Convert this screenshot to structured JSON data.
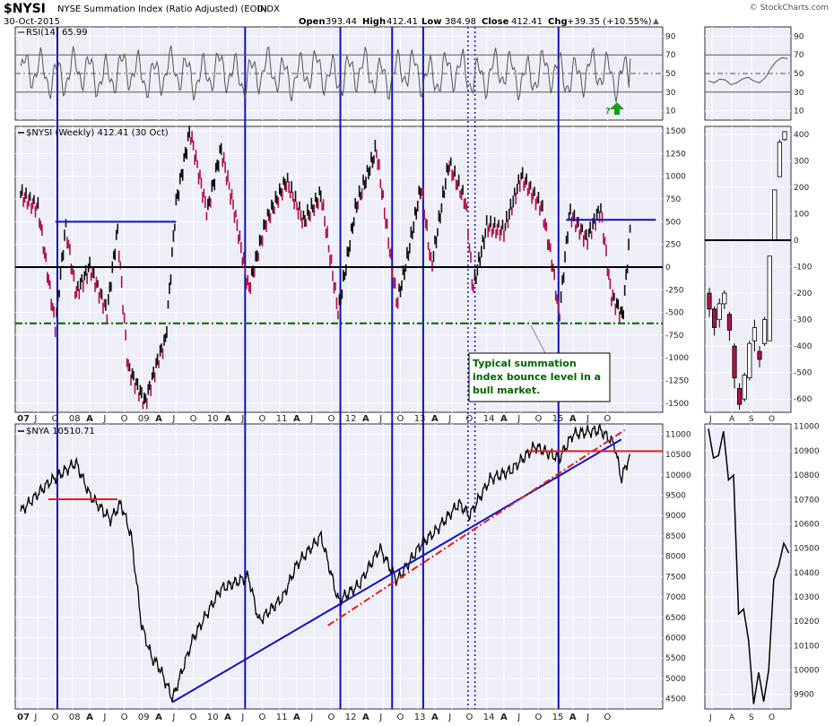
{
  "header": {
    "symbol": "$NYSI",
    "name": "NYSE Summation Index (Ratio Adjusted) (EOD)",
    "exchange": "INDX",
    "date": "30-Oct-2015",
    "brand": "© StockCharts.com",
    "quote": {
      "open_label": "Open",
      "open": "393.44",
      "high_label": "High",
      "high": "412.41",
      "low_label": "Low",
      "low": "384.98",
      "close_label": "Close",
      "close": "412.41",
      "chg_label": "Chg",
      "chg": "+39.35 (+10.55%)",
      "chg_arrow": "▲"
    }
  },
  "colors": {
    "panel_bg": "#eeeef8",
    "grid": "#ffffff",
    "blue_line": "#1010c8",
    "red_line": "#e02020",
    "green_dash": "#006400",
    "up_bar": "#111111",
    "down_bar": "#b0124a",
    "rsi_line": "#555555",
    "green_arrow": "#19a019"
  },
  "chart_data": [
    {
      "type": "line",
      "panel": "rsi",
      "legend": "RSI(14) 65.99",
      "y_ticks": [
        "90",
        "70",
        "50",
        "30",
        "10"
      ],
      "ylim": [
        0,
        100
      ],
      "reference_levels": [
        70,
        50,
        30
      ],
      "annotation": "?"
    },
    {
      "type": "bar",
      "panel": "nysi",
      "legend": "$NYSI (Weekly) 412.41 (30 Oct)",
      "y_ticks": [
        "1500",
        "1250",
        "1000",
        "750",
        "500",
        "250",
        "0",
        "-250",
        "-500",
        "-750",
        "-1000",
        "-1250",
        "-1500"
      ],
      "ylim": [
        -1600,
        1550
      ],
      "x_ticks": [
        "07",
        "J",
        "O",
        "08",
        "A",
        "J",
        "O",
        "09",
        "A",
        "J",
        "O",
        "10",
        "A",
        "J",
        "O",
        "11",
        "A",
        "J",
        "O",
        "12",
        "A",
        "J",
        "O",
        "13",
        "A",
        "J",
        "O",
        "14",
        "A",
        "J",
        "O",
        "15",
        "A",
        "J",
        "O"
      ],
      "series_approx": [
        {
          "t": 2007.0,
          "v": 800
        },
        {
          "t": 2007.25,
          "v": 650
        },
        {
          "t": 2007.5,
          "v": -650
        },
        {
          "t": 2007.65,
          "v": 450
        },
        {
          "t": 2007.8,
          "v": -300
        },
        {
          "t": 2008.0,
          "v": 0
        },
        {
          "t": 2008.25,
          "v": -500
        },
        {
          "t": 2008.4,
          "v": 420
        },
        {
          "t": 2008.55,
          "v": -1100
        },
        {
          "t": 2008.8,
          "v": -1500
        },
        {
          "t": 2009.0,
          "v": -1000
        },
        {
          "t": 2009.1,
          "v": -800
        },
        {
          "t": 2009.25,
          "v": 700
        },
        {
          "t": 2009.45,
          "v": 1500
        },
        {
          "t": 2009.7,
          "v": 600
        },
        {
          "t": 2009.9,
          "v": 1300
        },
        {
          "t": 2010.1,
          "v": 600
        },
        {
          "t": 2010.3,
          "v": -250
        },
        {
          "t": 2010.55,
          "v": 500
        },
        {
          "t": 2010.85,
          "v": 950
        },
        {
          "t": 2011.1,
          "v": 500
        },
        {
          "t": 2011.35,
          "v": 800
        },
        {
          "t": 2011.6,
          "v": -500
        },
        {
          "t": 2011.85,
          "v": 650
        },
        {
          "t": 2012.15,
          "v": 1300
        },
        {
          "t": 2012.45,
          "v": -400
        },
        {
          "t": 2012.6,
          "v": 100
        },
        {
          "t": 2012.8,
          "v": 900
        },
        {
          "t": 2012.95,
          "v": 0
        },
        {
          "t": 2013.2,
          "v": 1150
        },
        {
          "t": 2013.45,
          "v": 700
        },
        {
          "t": 2013.55,
          "v": -250
        },
        {
          "t": 2013.75,
          "v": 450
        },
        {
          "t": 2014.0,
          "v": 400
        },
        {
          "t": 2014.25,
          "v": 1000
        },
        {
          "t": 2014.55,
          "v": 650
        },
        {
          "t": 2014.7,
          "v": 50
        },
        {
          "t": 2014.8,
          "v": -550
        },
        {
          "t": 2014.95,
          "v": 600
        },
        {
          "t": 2015.2,
          "v": 300
        },
        {
          "t": 2015.4,
          "v": 650
        },
        {
          "t": 2015.55,
          "v": -300
        },
        {
          "t": 2015.72,
          "v": -550
        },
        {
          "t": 2015.83,
          "v": 412
        }
      ],
      "horizontal_levels": [
        {
          "value": 500,
          "from": 2007.5,
          "to": 2009.25,
          "style": "blue"
        },
        {
          "value": 520,
          "from": 2014.9,
          "to": 2016.2,
          "style": "blue"
        },
        {
          "value": 0,
          "style": "black"
        },
        {
          "value": -620,
          "style": "green-dash"
        }
      ],
      "annotation": "Typical summation index bounce level in a bull market."
    },
    {
      "type": "line",
      "panel": "nya",
      "legend": "$NYA 10510.71",
      "y_ticks": [
        "11000",
        "10500",
        "10000",
        "9500",
        "9000",
        "8500",
        "8000",
        "7500",
        "7000",
        "6500",
        "6000",
        "5500",
        "5000",
        "4500"
      ],
      "ylim": [
        4250,
        11250
      ],
      "x_ticks": [
        "07",
        "J",
        "O",
        "08",
        "A",
        "J",
        "O",
        "09",
        "A",
        "J",
        "O",
        "10",
        "A",
        "J",
        "O",
        "11",
        "A",
        "J",
        "O",
        "12",
        "A",
        "J",
        "O",
        "13",
        "A",
        "J",
        "O",
        "14",
        "A",
        "J",
        "O",
        "15",
        "A",
        "J",
        "O"
      ],
      "series_approx": [
        {
          "t": 2007.0,
          "v": 9100
        },
        {
          "t": 2007.4,
          "v": 9800
        },
        {
          "t": 2007.8,
          "v": 10300
        },
        {
          "t": 2008.0,
          "v": 9500
        },
        {
          "t": 2008.3,
          "v": 8900
        },
        {
          "t": 2008.45,
          "v": 9300
        },
        {
          "t": 2008.6,
          "v": 8500
        },
        {
          "t": 2008.75,
          "v": 6300
        },
        {
          "t": 2008.9,
          "v": 5500
        },
        {
          "t": 2009.0,
          "v": 5300
        },
        {
          "t": 2009.2,
          "v": 4500
        },
        {
          "t": 2009.5,
          "v": 6000
        },
        {
          "t": 2009.9,
          "v": 7200
        },
        {
          "t": 2010.3,
          "v": 7500
        },
        {
          "t": 2010.45,
          "v": 6400
        },
        {
          "t": 2010.8,
          "v": 7000
        },
        {
          "t": 2011.0,
          "v": 7800
        },
        {
          "t": 2011.35,
          "v": 8500
        },
        {
          "t": 2011.6,
          "v": 6900
        },
        {
          "t": 2011.9,
          "v": 7300
        },
        {
          "t": 2012.2,
          "v": 8200
        },
        {
          "t": 2012.45,
          "v": 7400
        },
        {
          "t": 2012.8,
          "v": 8300
        },
        {
          "t": 2013.0,
          "v": 8600
        },
        {
          "t": 2013.35,
          "v": 9300
        },
        {
          "t": 2013.5,
          "v": 9000
        },
        {
          "t": 2013.8,
          "v": 9900
        },
        {
          "t": 2014.1,
          "v": 10100
        },
        {
          "t": 2014.45,
          "v": 10700
        },
        {
          "t": 2014.8,
          "v": 10400
        },
        {
          "t": 2015.0,
          "v": 11000
        },
        {
          "t": 2015.4,
          "v": 11100
        },
        {
          "t": 2015.6,
          "v": 10750
        },
        {
          "t": 2015.7,
          "v": 9900
        },
        {
          "t": 2015.83,
          "v": 10510
        }
      ],
      "trendlines": [
        {
          "style": "blue",
          "from": {
            "t": 2009.2,
            "v": 4420
          },
          "to": {
            "t": 2015.7,
            "v": 10870
          }
        },
        {
          "style": "red-dashdot",
          "from": {
            "t": 2011.45,
            "v": 6300
          },
          "to": {
            "t": 2015.75,
            "v": 11100
          }
        },
        {
          "style": "red",
          "from": {
            "t": 2007.4,
            "v": 9400
          },
          "to": {
            "t": 2008.4,
            "v": 9400
          }
        },
        {
          "style": "red",
          "from": {
            "t": 2014.35,
            "v": 10580
          },
          "to": {
            "t": 2016.3,
            "v": 10580
          }
        }
      ]
    },
    {
      "type": "line",
      "panel": "rsi-zoom",
      "y_ticks": [],
      "x_ticks": [
        "J",
        "A",
        "S",
        "O"
      ]
    },
    {
      "type": "bar",
      "panel": "nysi-zoom",
      "y_ticks": [
        "400",
        "300",
        "200",
        "100",
        "0",
        "-100",
        "-200",
        "-300",
        "-400",
        "-500",
        "-600"
      ],
      "ylim": [
        -650,
        430
      ],
      "x_ticks": [
        "J",
        "A",
        "S",
        "O"
      ],
      "candles": [
        {
          "o": -200,
          "c": -260,
          "h": -180,
          "l": -290,
          "up": false
        },
        {
          "o": -260,
          "c": -330,
          "h": -250,
          "l": -360,
          "up": false
        },
        {
          "o": -300,
          "c": -240,
          "h": -220,
          "l": -330,
          "up": true
        },
        {
          "o": -240,
          "c": -200,
          "h": -190,
          "l": -260,
          "up": true
        },
        {
          "o": -280,
          "c": -340,
          "h": -270,
          "l": -380,
          "up": false
        },
        {
          "o": -400,
          "c": -520,
          "h": -390,
          "l": -560,
          "up": false
        },
        {
          "o": -560,
          "c": -620,
          "h": -540,
          "l": -640,
          "up": false
        },
        {
          "o": -600,
          "c": -510,
          "h": -500,
          "l": -610,
          "up": true
        },
        {
          "o": -520,
          "c": -390,
          "h": -380,
          "l": -530,
          "up": true
        },
        {
          "o": -380,
          "c": -330,
          "h": -300,
          "l": -420,
          "up": true
        },
        {
          "o": -420,
          "c": -450,
          "h": -400,
          "l": -480,
          "up": false
        },
        {
          "o": -390,
          "c": -300,
          "h": -290,
          "l": -400,
          "up": true
        },
        {
          "o": -380,
          "c": -60,
          "h": -60,
          "l": -380,
          "up": true
        },
        {
          "o": 0,
          "c": 190,
          "h": 190,
          "l": 0,
          "up": true
        },
        {
          "o": 240,
          "c": 370,
          "h": 380,
          "l": 240,
          "up": true
        },
        {
          "o": 380,
          "c": 410,
          "h": 412,
          "l": 375,
          "up": true
        }
      ]
    },
    {
      "type": "line",
      "panel": "nya-zoom",
      "y_ticks": [
        "11000",
        "10900",
        "10800",
        "10700",
        "10600",
        "10500",
        "10400",
        "10300",
        "10200",
        "10100",
        "10000",
        "9900"
      ],
      "ylim": [
        9840,
        11010
      ],
      "x_ticks": [
        "J",
        "A",
        "S",
        "O"
      ],
      "series_approx": [
        10990,
        10870,
        10880,
        10980,
        10780,
        10800,
        10230,
        10250,
        10120,
        9860,
        9990,
        9870,
        10000,
        10370,
        10430,
        10520,
        10480
      ]
    }
  ]
}
